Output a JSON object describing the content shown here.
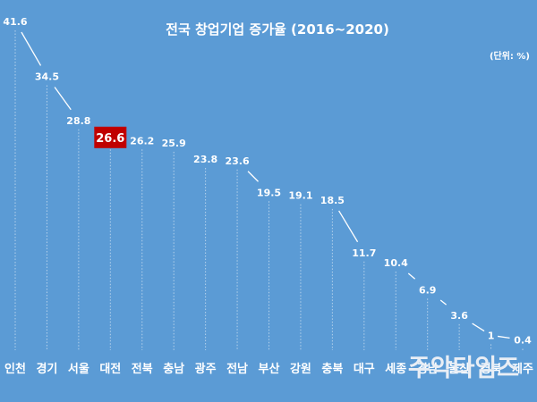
{
  "chart_data": {
    "type": "line",
    "title": "전국 창업기업 증가율 (2016~2020)",
    "unit_label": "(단위: %)",
    "categories": [
      "인천",
      "경기",
      "서울",
      "대전",
      "전북",
      "충남",
      "광주",
      "전남",
      "부산",
      "강원",
      "충북",
      "대구",
      "세종",
      "경남",
      "울산",
      "경북",
      "제주"
    ],
    "values": [
      41.6,
      34.5,
      28.8,
      26.6,
      26.2,
      25.9,
      23.8,
      23.6,
      19.5,
      19.1,
      18.5,
      11.7,
      10.4,
      6.9,
      3.6,
      1.0,
      0.4
    ],
    "highlight_index": 3,
    "highlight_color": "#c00000",
    "background_color": "#5b9bd5",
    "line_color": "#ffffff",
    "ylim": [
      0,
      41.6
    ],
    "grid": false,
    "legend": "none"
  },
  "watermark": "주악타임즈"
}
